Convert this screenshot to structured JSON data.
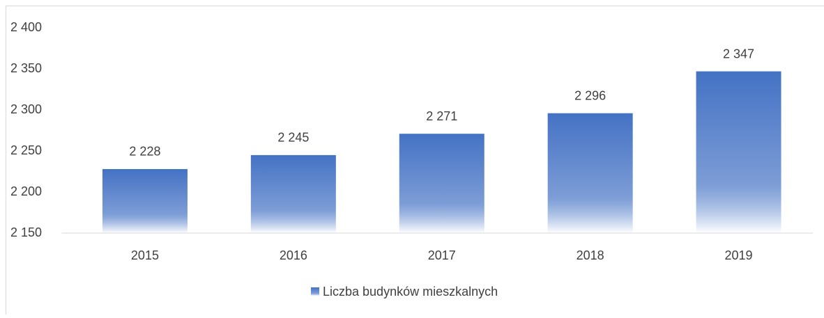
{
  "chart_data": {
    "type": "bar",
    "categories": [
      "2015",
      "2016",
      "2017",
      "2018",
      "2019"
    ],
    "series": [
      {
        "name": "Liczba budynków mieszkalnych",
        "color": "#4472c4",
        "values": [
          2228,
          2245,
          2271,
          2296,
          2347
        ],
        "value_labels": [
          "2 228",
          "2 245",
          "2 271",
          "2 296",
          "2 347"
        ]
      }
    ],
    "ylim": [
      2150,
      2400
    ],
    "yticks": [
      {
        "value": 2150,
        "label": "2 150"
      },
      {
        "value": 2200,
        "label": "2 200"
      },
      {
        "value": 2250,
        "label": "2 250"
      },
      {
        "value": 2300,
        "label": "2 300"
      },
      {
        "value": 2350,
        "label": "2 350"
      },
      {
        "value": 2400,
        "label": "2 400"
      }
    ],
    "grid": false,
    "legend": "bottom"
  }
}
